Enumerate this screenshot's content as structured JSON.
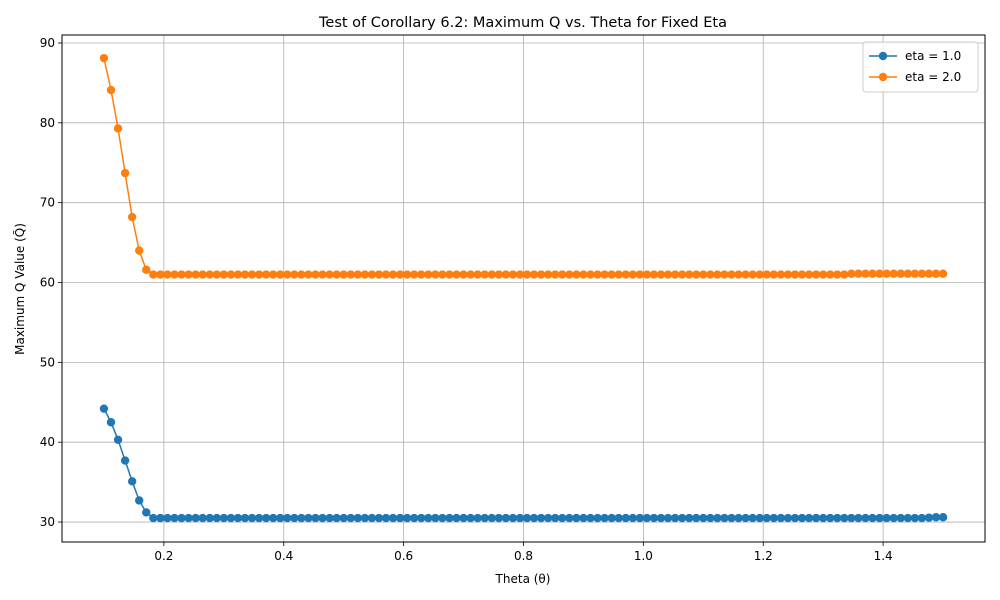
{
  "chart_data": {
    "type": "line",
    "title": "Test of Corollary 6.2: Maximum Q vs. Theta for Fixed Eta",
    "xlabel": "Theta (θ)",
    "ylabel": "Maximum Q Value (Q̃)",
    "xlim": [
      0.03,
      1.57
    ],
    "ylim": [
      27.5,
      91
    ],
    "x_ticks": [
      0.2,
      0.4,
      0.6,
      0.8,
      1.0,
      1.2,
      1.4
    ],
    "x_tick_labels": [
      "0.2",
      "0.4",
      "0.6",
      "0.8",
      "1.0",
      "1.2",
      "1.4"
    ],
    "y_ticks": [
      30,
      40,
      50,
      60,
      70,
      80,
      90
    ],
    "y_tick_labels": [
      "30",
      "40",
      "50",
      "60",
      "70",
      "80",
      "90"
    ],
    "grid": true,
    "legend_position": "top-right",
    "x_start": 0.1,
    "x_end": 1.5,
    "x_count": 120,
    "series": [
      {
        "name": "eta = 1.0",
        "color": "#1f77b4",
        "head": [
          44.2,
          42.5,
          40.3,
          37.7,
          35.1,
          32.7,
          31.2
        ],
        "plateau": 30.5,
        "tail": [
          30.55,
          30.6,
          30.6
        ]
      },
      {
        "name": "eta = 2.0",
        "color": "#ff7f0e",
        "head": [
          88.1,
          84.1,
          79.3,
          73.7,
          68.2,
          64.0,
          61.6
        ],
        "plateau": 61.0,
        "tail_start_index": 106,
        "tail_value": 61.1
      }
    ]
  }
}
